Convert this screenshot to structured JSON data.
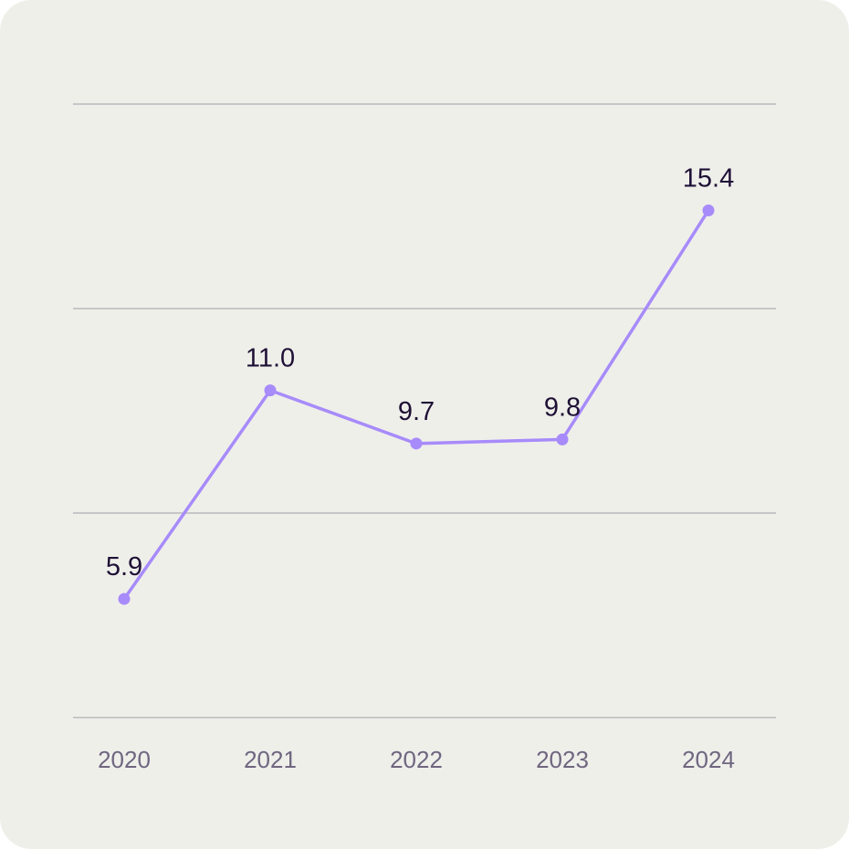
{
  "chart_data": {
    "type": "line",
    "title": "",
    "xlabel": "",
    "ylabel": "",
    "categories": [
      "2020",
      "2021",
      "2022",
      "2023",
      "2024"
    ],
    "series": [
      {
        "values": [
          5.9,
          11.0,
          9.7,
          9.8,
          15.4
        ]
      }
    ],
    "data_labels": [
      "5.9",
      "11.0",
      "9.7",
      "9.8",
      "15.4"
    ],
    "ylim": [
      3,
      18
    ],
    "y_gridlines": [
      3,
      8,
      13,
      18
    ],
    "y_tick_labels_visible": false,
    "grid": true,
    "legend": "none",
    "colors": {
      "background": "#efefea",
      "line": "#a78bfa",
      "grid": "#c6c6c8",
      "data_label": "#1e1035",
      "tick_label": "#6f6680"
    }
  }
}
